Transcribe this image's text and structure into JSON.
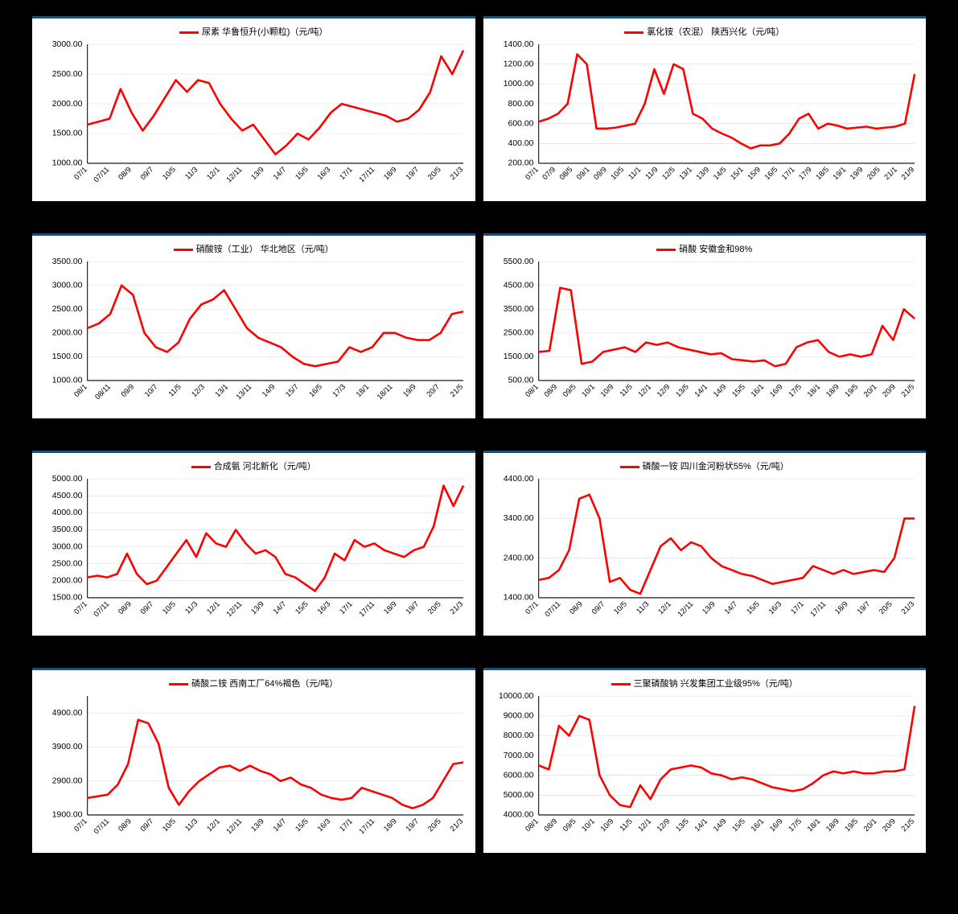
{
  "page_background": "#000000",
  "panel_background": "#ffffff",
  "panel_top_border": "#1f4e79",
  "line_color": "#ff0000",
  "grid_color": "#d9d9d9",
  "axis_color": "#000000",
  "label_color": "#000000",
  "legend_fontsize": 11,
  "tick_fontsize": 10,
  "xtick_fontsize": 9,
  "line_width": 2.5,
  "charts": [
    {
      "id": "urea",
      "type": "line",
      "legend": "尿素 华鲁恒升(小颗粒)（元/吨）",
      "ylim": [
        1000,
        3000
      ],
      "ytick_step": 500,
      "y_decimals": 2,
      "x_labels": [
        "07/1",
        "07/11",
        "08/9",
        "09/7",
        "10/5",
        "11/3",
        "12/1",
        "12/11",
        "13/9",
        "14/7",
        "15/5",
        "16/3",
        "17/1",
        "17/11",
        "18/9",
        "19/7",
        "20/5",
        "21/3"
      ],
      "values": [
        1650,
        1700,
        1750,
        2250,
        1850,
        1550,
        1800,
        2100,
        2400,
        2200,
        2400,
        2350,
        2000,
        1750,
        1550,
        1650,
        1400,
        1150,
        1300,
        1500,
        1400,
        1600,
        1850,
        2000,
        1950,
        1900,
        1850,
        1800,
        1700,
        1750,
        1900,
        2200,
        2800,
        2500,
        2900
      ]
    },
    {
      "id": "ammonium-chloride",
      "type": "line",
      "legend": "氯化铵（农混） 陕西兴化（元/吨）",
      "ylim": [
        200,
        1400
      ],
      "ytick_step": 200,
      "y_decimals": 2,
      "x_labels": [
        "07/1",
        "07/9",
        "08/5",
        "09/1",
        "09/9",
        "10/5",
        "11/1",
        "11/9",
        "12/5",
        "13/1",
        "13/9",
        "14/5",
        "15/1",
        "15/9",
        "16/5",
        "17/1",
        "17/9",
        "18/5",
        "19/1",
        "19/9",
        "20/5",
        "21/1",
        "21/9"
      ],
      "values": [
        620,
        650,
        700,
        800,
        1300,
        1200,
        550,
        550,
        560,
        580,
        600,
        800,
        1150,
        900,
        1200,
        1150,
        700,
        650,
        550,
        500,
        460,
        400,
        350,
        380,
        380,
        400,
        500,
        650,
        700,
        550,
        600,
        580,
        550,
        560,
        570,
        550,
        560,
        570,
        600,
        1100
      ]
    },
    {
      "id": "ammonium-nitrate",
      "type": "line",
      "legend": "硝酸铵（工业） 华北地区（元/吨）",
      "ylim": [
        1000,
        3500
      ],
      "ytick_step": 500,
      "y_decimals": 2,
      "x_labels": [
        "08/1",
        "08/11",
        "09/9",
        "10/7",
        "11/5",
        "12/3",
        "13/1",
        "13/11",
        "14/9",
        "15/7",
        "16/5",
        "17/3",
        "18/1",
        "18/11",
        "19/9",
        "20/7",
        "21/5"
      ],
      "values": [
        2100,
        2200,
        2400,
        3000,
        2800,
        2000,
        1700,
        1600,
        1800,
        2300,
        2600,
        2700,
        2900,
        2500,
        2100,
        1900,
        1800,
        1700,
        1500,
        1350,
        1300,
        1350,
        1400,
        1700,
        1600,
        1700,
        2000,
        2000,
        1900,
        1850,
        1850,
        2000,
        2400,
        2450
      ]
    },
    {
      "id": "nitric-acid",
      "type": "line",
      "legend": "硝酸 安徽金和98%",
      "ylim": [
        500,
        5500
      ],
      "ytick_step": 1000,
      "y_decimals": 2,
      "x_labels": [
        "08/1",
        "08/9",
        "09/5",
        "10/1",
        "10/9",
        "11/5",
        "12/1",
        "12/9",
        "13/5",
        "14/1",
        "14/9",
        "15/5",
        "16/1",
        "16/9",
        "17/5",
        "18/1",
        "18/9",
        "19/5",
        "20/1",
        "20/9",
        "21/5"
      ],
      "values": [
        1700,
        1750,
        4400,
        4300,
        1200,
        1300,
        1700,
        1800,
        1900,
        1700,
        2100,
        2000,
        2100,
        1900,
        1800,
        1700,
        1600,
        1650,
        1400,
        1350,
        1300,
        1350,
        1100,
        1200,
        1900,
        2100,
        2200,
        1700,
        1500,
        1600,
        1500,
        1600,
        2800,
        2200,
        3500,
        3100
      ]
    },
    {
      "id": "synthetic-ammonia",
      "type": "line",
      "legend": "合成氨 河北新化（元/吨）",
      "ylim": [
        1500,
        5000
      ],
      "ytick_step": 500,
      "y_decimals": 2,
      "x_labels": [
        "07/1",
        "07/11",
        "08/9",
        "09/7",
        "10/5",
        "11/3",
        "12/1",
        "12/11",
        "13/9",
        "14/7",
        "15/5",
        "16/3",
        "17/1",
        "17/11",
        "18/9",
        "19/7",
        "20/5",
        "21/3"
      ],
      "values": [
        2100,
        2150,
        2100,
        2200,
        2800,
        2200,
        1900,
        2000,
        2400,
        2800,
        3200,
        2700,
        3400,
        3100,
        3000,
        3500,
        3100,
        2800,
        2900,
        2700,
        2200,
        2100,
        1900,
        1700,
        2100,
        2800,
        2600,
        3200,
        3000,
        3100,
        2900,
        2800,
        2700,
        2900,
        3000,
        3600,
        4800,
        4200,
        4800
      ]
    },
    {
      "id": "monoammonium-phosphate",
      "type": "line",
      "legend": "磷酸一铵 四川金河粉状55%（元/吨）",
      "ylim": [
        1400,
        4400
      ],
      "ytick_step": 1000,
      "y_decimals": 2,
      "x_labels": [
        "07/1",
        "07/11",
        "08/9",
        "09/7",
        "10/5",
        "11/3",
        "12/1",
        "12/11",
        "13/9",
        "14/7",
        "15/5",
        "16/3",
        "17/1",
        "17/11",
        "18/9",
        "19/7",
        "20/5",
        "21/3"
      ],
      "values": [
        1850,
        1900,
        2100,
        2600,
        3900,
        4000,
        3400,
        1800,
        1900,
        1600,
        1500,
        2100,
        2700,
        2900,
        2600,
        2800,
        2700,
        2400,
        2200,
        2100,
        2000,
        1950,
        1850,
        1750,
        1800,
        1850,
        1900,
        2200,
        2100,
        2000,
        2100,
        2000,
        2050,
        2100,
        2050,
        2400,
        3400,
        3400
      ]
    },
    {
      "id": "diammonium-phosphate",
      "type": "line",
      "legend": "磷酸二铵 西南工厂64%褐色（元/吨）",
      "ylim": [
        1900,
        5400
      ],
      "ytick_step": 1000,
      "y_decimals": 2,
      "x_labels": [
        "07/1",
        "07/11",
        "08/9",
        "09/7",
        "10/5",
        "11/3",
        "12/1",
        "12/11",
        "13/9",
        "14/7",
        "15/5",
        "16/3",
        "17/1",
        "17/11",
        "18/9",
        "19/7",
        "20/5",
        "21/3"
      ],
      "values": [
        2400,
        2450,
        2500,
        2800,
        3400,
        4700,
        4600,
        4000,
        2700,
        2200,
        2600,
        2900,
        3100,
        3300,
        3350,
        3200,
        3350,
        3200,
        3100,
        2900,
        3000,
        2800,
        2700,
        2500,
        2400,
        2350,
        2400,
        2700,
        2600,
        2500,
        2400,
        2200,
        2100,
        2200,
        2400,
        2900,
        3400,
        3450
      ]
    },
    {
      "id": "sodium-tripolyphosphate",
      "type": "line",
      "legend": "三聚磷酸钠 兴发集团工业级95%（元/吨）",
      "ylim": [
        4000,
        10000
      ],
      "ytick_step": 1000,
      "y_decimals": 2,
      "x_labels": [
        "08/1",
        "08/9",
        "09/5",
        "10/1",
        "10/9",
        "11/5",
        "12/1",
        "12/9",
        "13/5",
        "14/1",
        "14/9",
        "15/5",
        "16/1",
        "16/9",
        "17/5",
        "18/1",
        "18/9",
        "19/5",
        "20/1",
        "20/9",
        "21/5"
      ],
      "values": [
        6500,
        6300,
        8500,
        8000,
        9000,
        8800,
        6000,
        5000,
        4500,
        4400,
        5500,
        4800,
        5800,
        6300,
        6400,
        6500,
        6400,
        6100,
        6000,
        5800,
        5900,
        5800,
        5600,
        5400,
        5300,
        5200,
        5300,
        5600,
        6000,
        6200,
        6100,
        6200,
        6100,
        6100,
        6200,
        6200,
        6300,
        9500
      ]
    }
  ]
}
